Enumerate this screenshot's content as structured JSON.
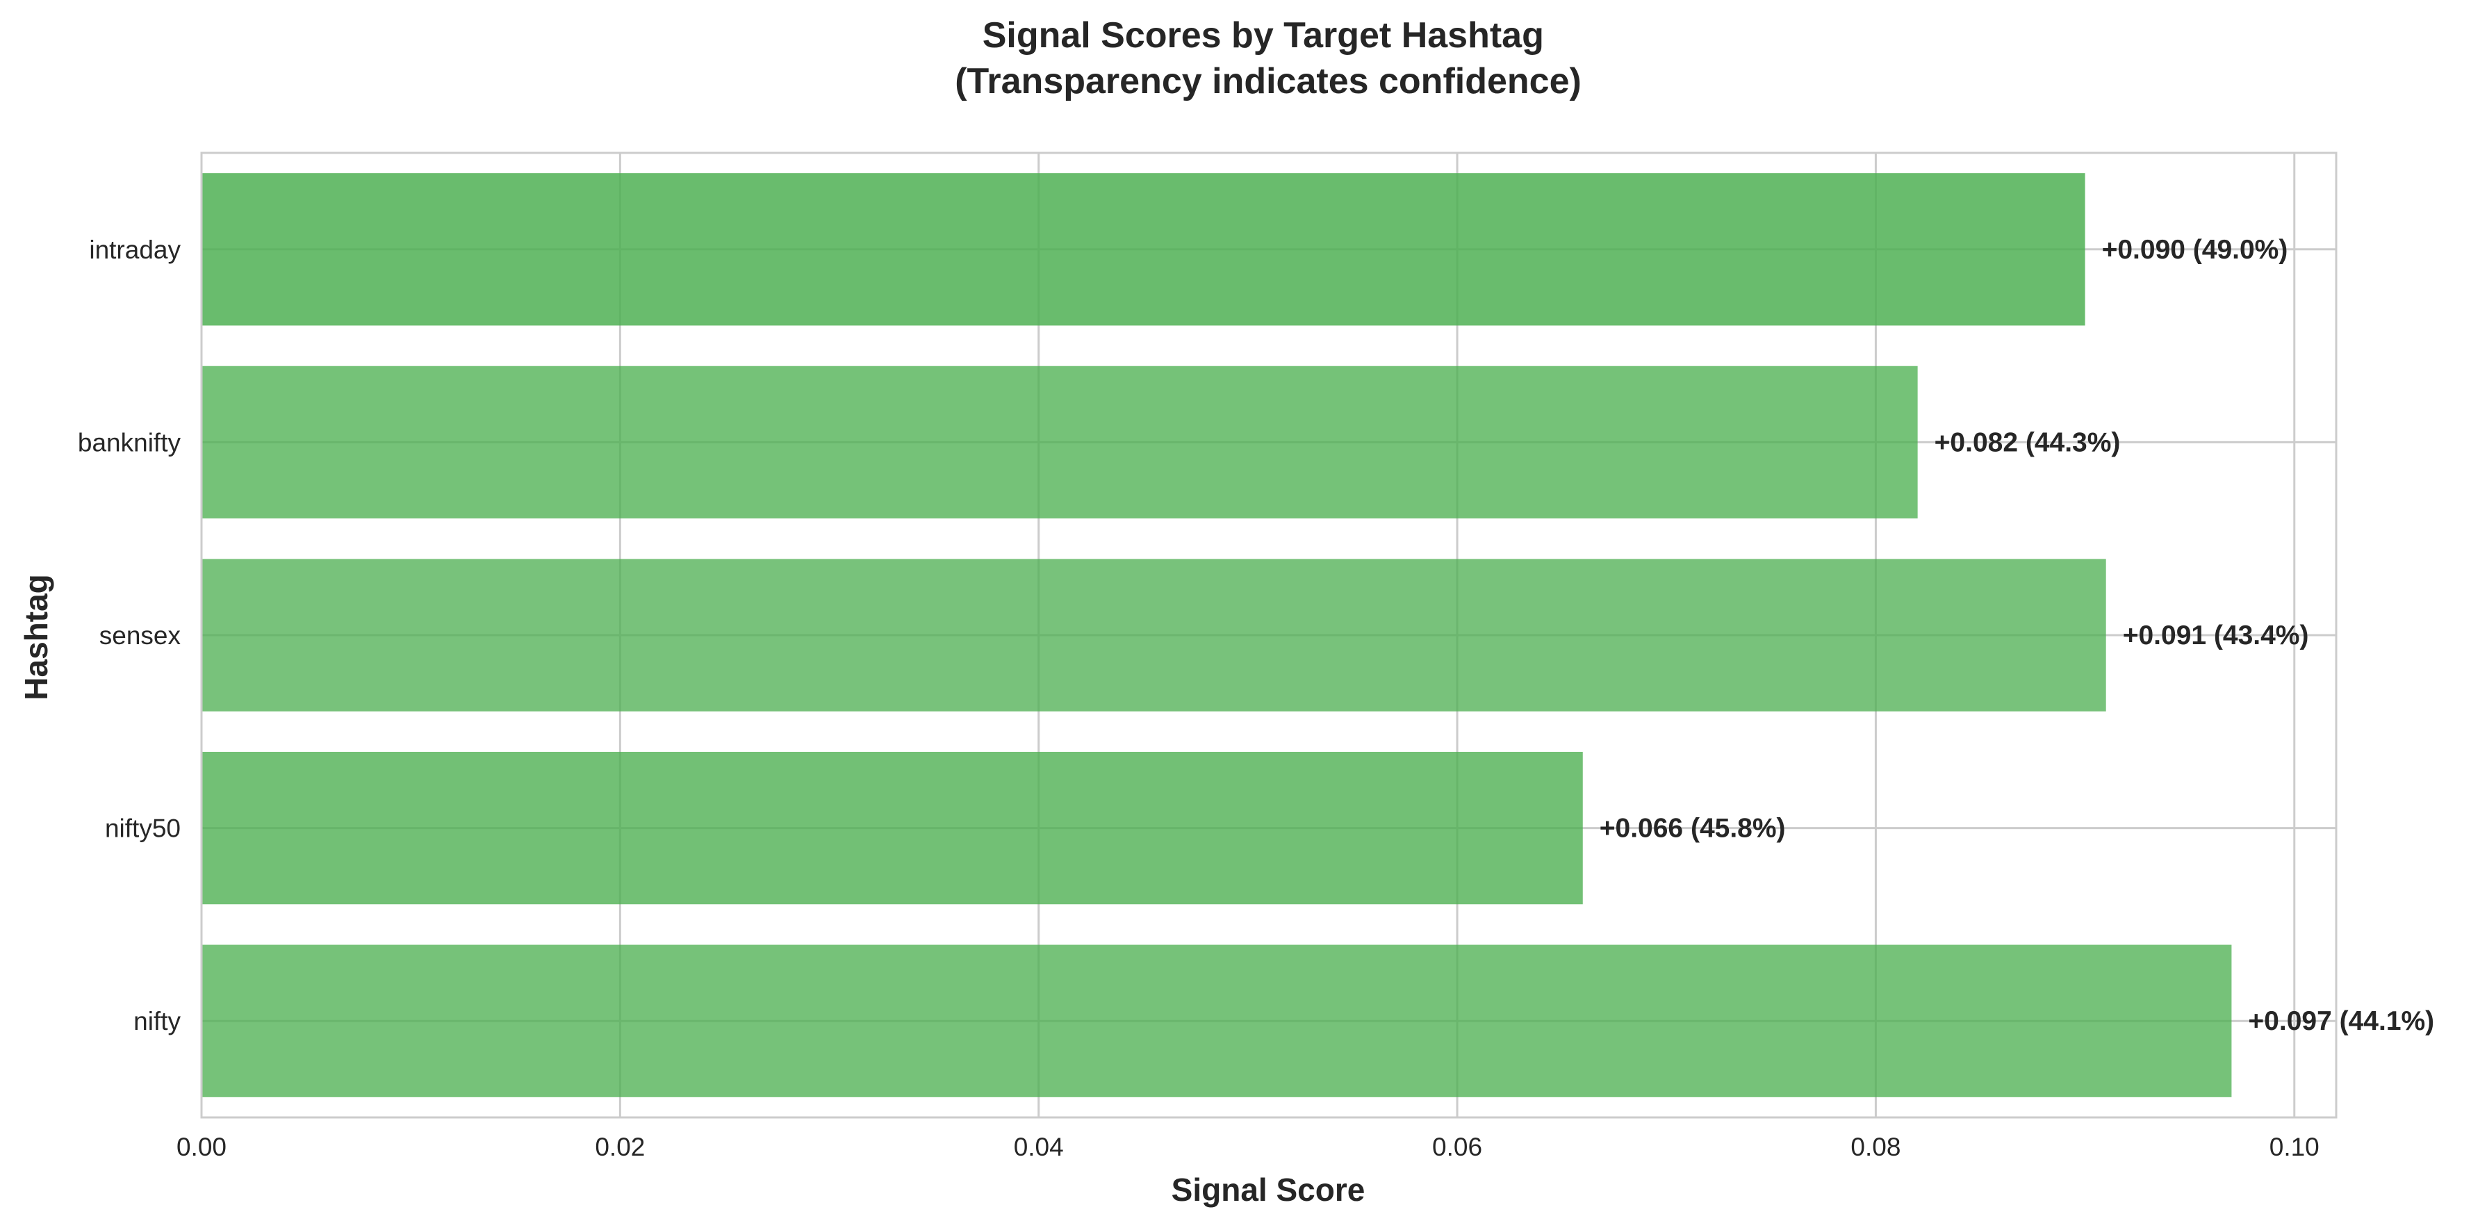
{
  "chart_data": {
    "type": "bar",
    "orientation": "horizontal",
    "title": "Signal Scores by Target Hashtag\n(Transparency indicates confidence)",
    "xlabel": "Signal Score",
    "ylabel": "Hashtag",
    "xlim": [
      0,
      0.102
    ],
    "xticks": [
      "0.00",
      "0.02",
      "0.04",
      "0.06",
      "0.08",
      "0.10"
    ],
    "grid": true,
    "categories": [
      "intraday",
      "banknifty",
      "sensex",
      "nifty50",
      "nifty"
    ],
    "values": [
      0.09,
      0.082,
      0.091,
      0.066,
      0.097
    ],
    "confidence": [
      0.49,
      0.443,
      0.434,
      0.458,
      0.441
    ],
    "data_labels": [
      "+0.090 (49.0%)",
      "+0.082 (44.3%)",
      "+0.091 (43.4%)",
      "+0.066 (45.8%)",
      "+0.097 (44.1%)"
    ],
    "bar_color": "#4caf50"
  }
}
